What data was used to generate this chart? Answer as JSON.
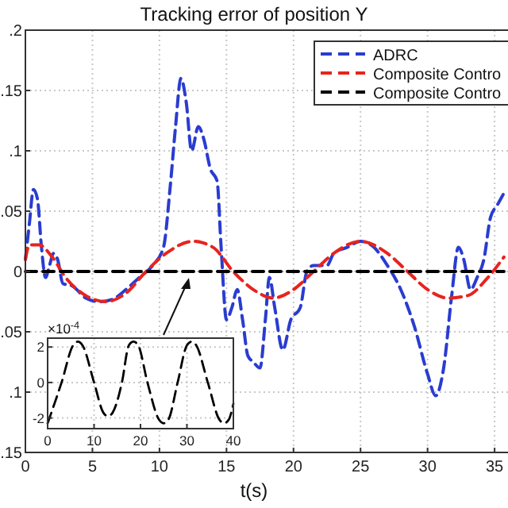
{
  "chart_data": [
    {
      "type": "line",
      "title": "Tracking error of position Y",
      "xlabel": "t(s)",
      "xlim": [
        0,
        36
      ],
      "xticks": [
        0,
        5,
        10,
        15,
        20,
        25,
        30,
        35
      ],
      "ylim": [
        -0.15,
        0.2
      ],
      "yticks": [
        {
          "value": 0.2,
          "label": ".2"
        },
        {
          "value": 0.15,
          "label": ".15"
        },
        {
          "value": 0.1,
          "label": ".1"
        },
        {
          "value": 0.05,
          "label": ".05"
        },
        0,
        {
          "value": -0.05,
          "label": ".05"
        },
        {
          "value": -0.1,
          "label": ".1"
        },
        {
          "value": -0.15,
          "label": ".15"
        }
      ],
      "grid": true,
      "legend": "top right",
      "marker": "none",
      "line_style": "dashed",
      "series": [
        {
          "name": "ADRC",
          "color": "#2a3cd0",
          "x": [
            0,
            0.3,
            0.6,
            0.9,
            1.2,
            1.5,
            1.8,
            2.1,
            2.4,
            2.8,
            3.5,
            4.5,
            5.5,
            6.5,
            7.5,
            8.5,
            9.5,
            10.3,
            10.8,
            11.2,
            11.6,
            12,
            12.4,
            12.9,
            13.3,
            13.8,
            14.3,
            14.6,
            15,
            15.4,
            15.8,
            16.2,
            16.6,
            17,
            17.5,
            17.9,
            18.2,
            18.6,
            19.2,
            19.8,
            20.5,
            21,
            21.5,
            22.5,
            23,
            24,
            25,
            26,
            27,
            28,
            29,
            30,
            30.6,
            31.2,
            31.8,
            32.3,
            32.7,
            33.2,
            33.7,
            34.2,
            34.7,
            35.2,
            35.7
          ],
          "values": [
            0.01,
            0.04,
            0.068,
            0.06,
            0.02,
            -0.005,
            0.005,
            0.015,
            0.01,
            -0.01,
            -0.012,
            -0.022,
            -0.025,
            -0.023,
            -0.015,
            -0.005,
            0.005,
            0.02,
            0.07,
            0.12,
            0.16,
            0.14,
            0.1,
            0.12,
            0.11,
            0.085,
            0.075,
            0.02,
            -0.04,
            -0.03,
            -0.015,
            -0.04,
            -0.07,
            -0.075,
            -0.08,
            -0.04,
            -0.005,
            -0.03,
            -0.065,
            -0.04,
            -0.03,
            0,
            0.005,
            0.005,
            0.015,
            0.02,
            0.025,
            0.02,
            0.005,
            -0.015,
            -0.045,
            -0.085,
            -0.103,
            -0.08,
            -0.02,
            0.02,
            0.01,
            -0.015,
            -0.005,
            0.01,
            0.045,
            0.055,
            0.065
          ]
        },
        {
          "name": "Composite Contro",
          "color": "#e8231e",
          "x": [
            0,
            0.3,
            1,
            2,
            3,
            4.5,
            6,
            7.5,
            9,
            10.5,
            12.5,
            14,
            15.5,
            17,
            18.5,
            20,
            21.5,
            23,
            25,
            27,
            28.5,
            30,
            31.5,
            33,
            34.5,
            35.7
          ],
          "values": [
            0.01,
            0.022,
            0.022,
            0.012,
            -0.005,
            -0.02,
            -0.025,
            -0.018,
            0,
            0.015,
            0.025,
            0.02,
            0,
            -0.015,
            -0.022,
            -0.015,
            0,
            0.015,
            0.025,
            0.015,
            0,
            -0.015,
            -0.022,
            -0.02,
            -0.005,
            0.012
          ]
        },
        {
          "name": "Composite Contro",
          "color": "#000000",
          "x": [
            0,
            35.7
          ],
          "values": [
            0,
            0
          ]
        }
      ]
    },
    {
      "type": "line",
      "ylabel": "×10$^{-4}$",
      "xlim": [
        0,
        40
      ],
      "xticks": [
        0,
        10,
        20,
        30,
        40
      ],
      "ylim": [
        -2.6,
        2.5
      ],
      "yticks": [
        -2,
        0,
        2
      ],
      "grid": true,
      "marker": "none",
      "line_style": "dashed",
      "series": [
        {
          "color": "#000000",
          "x": [
            0,
            3,
            5.5,
            6.5,
            7.5,
            10,
            12,
            13,
            14,
            16,
            17.5,
            18.5,
            19.5,
            21.5,
            24,
            25,
            26,
            28,
            30,
            31,
            32,
            34.5,
            37,
            38,
            39,
            40
          ],
          "values": [
            -2.3,
            0,
            2.1,
            2.3,
            2.1,
            0,
            -1.7,
            -1.9,
            -1.7,
            0,
            2.1,
            2.3,
            2.1,
            0,
            -2.1,
            -2.3,
            -2.1,
            0,
            2.1,
            2.3,
            2.1,
            0,
            -2.1,
            -2.3,
            -2.1,
            -1.2
          ]
        }
      ]
    }
  ]
}
